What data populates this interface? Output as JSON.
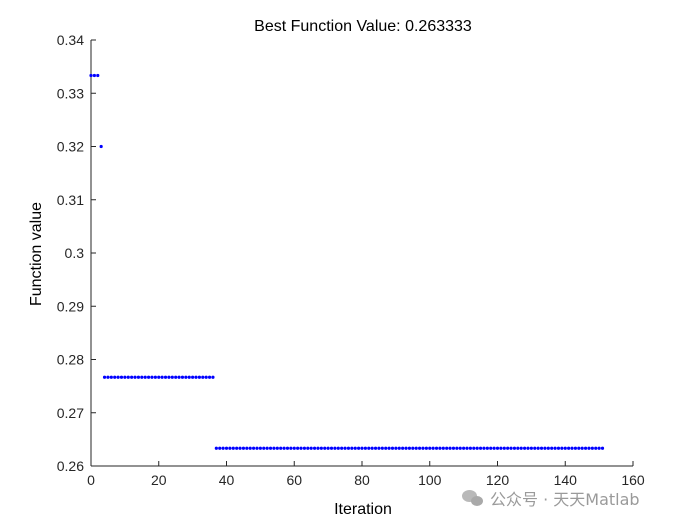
{
  "chart_data": {
    "type": "scatter",
    "title": "Best Function Value: 0.263333",
    "xlabel": "Iteration",
    "ylabel": "Function value",
    "xlim": [
      0,
      160
    ],
    "ylim": [
      0.26,
      0.34
    ],
    "xticks": [
      0,
      20,
      40,
      60,
      80,
      100,
      120,
      140,
      160
    ],
    "yticks": [
      0.26,
      0.27,
      0.28,
      0.29,
      0.3,
      0.31,
      0.32,
      0.33,
      0.34
    ],
    "xtick_labels": [
      "0",
      "20",
      "40",
      "60",
      "80",
      "100",
      "120",
      "140",
      "160"
    ],
    "ytick_labels": [
      "0.26",
      "0.27",
      "0.28",
      "0.29",
      "0.3",
      "0.31",
      "0.32",
      "0.33",
      "0.34"
    ],
    "grid": false,
    "marker_color": "#0000ff",
    "segments": [
      {
        "x_start": 0,
        "x_end": 2,
        "y": 0.333333
      },
      {
        "x_start": 3,
        "x_end": 3,
        "y": 0.32
      },
      {
        "x_start": 4,
        "x_end": 36,
        "y": 0.276667
      },
      {
        "x_start": 37,
        "x_end": 151,
        "y": 0.263333
      }
    ]
  },
  "watermark": {
    "text": "公众号 · 天天Matlab"
  }
}
